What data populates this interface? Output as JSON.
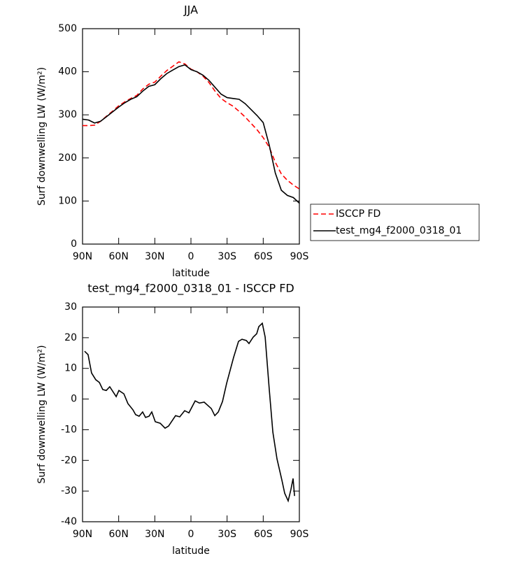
{
  "chart_data": [
    {
      "type": "line",
      "title": "JJA",
      "xlabel": "latitude",
      "ylabel": "Surf downwelling LW (W/m²)",
      "x": [
        90,
        85,
        80,
        75,
        70,
        65,
        60,
        55,
        50,
        45,
        40,
        35,
        30,
        25,
        20,
        15,
        10,
        5,
        0,
        -5,
        -10,
        -15,
        -20,
        -25,
        -30,
        -35,
        -40,
        -45,
        -50,
        -55,
        -60,
        -65,
        -70,
        -75,
        -80,
        -85,
        -90
      ],
      "series": [
        {
          "name": "ISCCP FD",
          "color": "#ff0000",
          "dash": true,
          "values": [
            275,
            275,
            276,
            285,
            297,
            309,
            321,
            330,
            338,
            345,
            360,
            371,
            376,
            390,
            403,
            413,
            423,
            418,
            406,
            400,
            390,
            375,
            355,
            338,
            328,
            320,
            308,
            295,
            280,
            265,
            247,
            225,
            190,
            163,
            148,
            137,
            128
          ]
        },
        {
          "name": "test_mg4_f2000_0318_01",
          "color": "#000000",
          "dash": false,
          "values": [
            290,
            288,
            281,
            285,
            296,
            307,
            318,
            328,
            336,
            342,
            355,
            366,
            370,
            384,
            396,
            404,
            412,
            416,
            405,
            400,
            392,
            380,
            364,
            348,
            340,
            338,
            336,
            326,
            312,
            298,
            282,
            230,
            165,
            125,
            113,
            108,
            95
          ]
        }
      ],
      "xlim": [
        90,
        -90
      ],
      "xticks": [
        {
          "value": 90,
          "label": "90N"
        },
        {
          "value": 60,
          "label": "60N"
        },
        {
          "value": 30,
          "label": "30N"
        },
        0,
        {
          "value": -30,
          "label": "30S"
        },
        {
          "value": -60,
          "label": "60S"
        },
        {
          "value": -90,
          "label": "90S"
        }
      ],
      "ylim": [
        0,
        500
      ],
      "yticks": [
        0,
        100,
        200,
        300,
        400,
        500
      ],
      "legend": "right"
    },
    {
      "type": "line",
      "title": "test_mg4_f2000_0318_01 - ISCCP FD",
      "xlabel": "latitude",
      "ylabel": "Surf downwelling LW (W/m²)",
      "x": [
        88.3,
        85.4,
        82.5,
        79,
        76,
        73.2,
        70.3,
        67.4,
        62.1,
        59.8,
        55.7,
        52.3,
        48.2,
        45.9,
        43,
        40.1,
        37.7,
        34.8,
        32.5,
        29.6,
        25.5,
        21.5,
        18.6,
        12.8,
        9.3,
        5.2,
        1.7,
        -3.5,
        -7,
        -11,
        -16.9,
        -19.8,
        -22.7,
        -26.2,
        -29.6,
        -35.4,
        -39.5,
        -42.4,
        -45.9,
        -48.2,
        -51.7,
        -54.6,
        -56.3,
        -59.2,
        -61.6,
        -65,
        -68,
        -71.4,
        -75.5,
        -77.8,
        -80.7,
        -83,
        -84.8,
        -86
      ],
      "values": [
        15.6,
        14.5,
        8.5,
        6.3,
        5.4,
        3.1,
        2.8,
        4,
        0.8,
        2.8,
        1.7,
        -1.5,
        -3.5,
        -5.1,
        -5.6,
        -4.2,
        -6,
        -5.6,
        -4.2,
        -7.4,
        -7.9,
        -9.5,
        -8.8,
        -5.4,
        -5.8,
        -3.8,
        -4.5,
        -0.6,
        -1.3,
        -1,
        -3.1,
        -5.4,
        -4.2,
        -0.8,
        5.1,
        13.6,
        18.8,
        19.5,
        19.1,
        18.1,
        20.2,
        21.3,
        23.6,
        24.7,
        20.2,
        3.3,
        -10.8,
        -19.5,
        -26.4,
        -30.7,
        -33.2,
        -29.5,
        -25.9,
        -31.6
      ],
      "color": "#000000",
      "xlim": [
        90,
        -90
      ],
      "xticks": [
        {
          "value": 90,
          "label": "90N"
        },
        {
          "value": 60,
          "label": "60N"
        },
        {
          "value": 30,
          "label": "30N"
        },
        0,
        {
          "value": -30,
          "label": "30S"
        },
        {
          "value": -60,
          "label": "60S"
        },
        {
          "value": -90,
          "label": "90S"
        }
      ],
      "ylim": [
        -40,
        30
      ],
      "yticks": [
        -40,
        -30,
        -20,
        -10,
        0,
        10,
        20,
        30
      ]
    }
  ]
}
